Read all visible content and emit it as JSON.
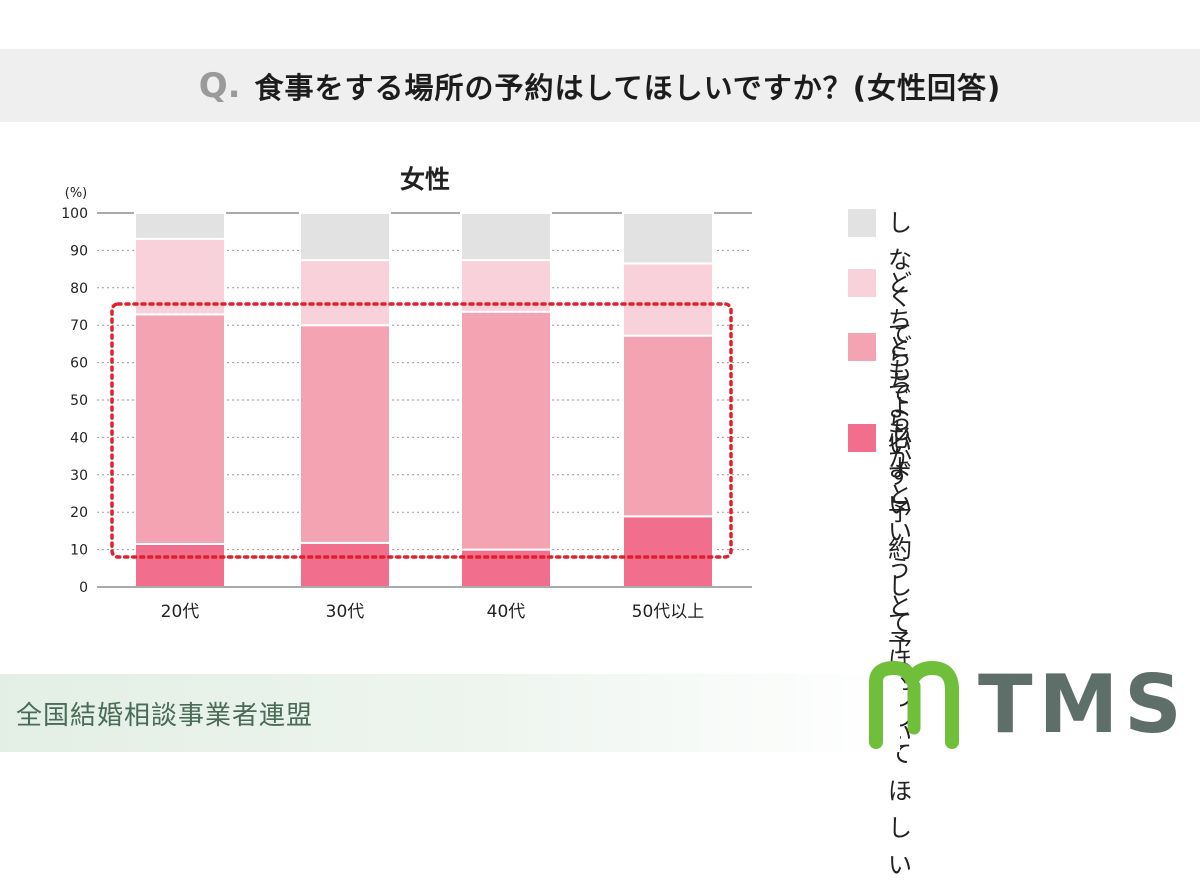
{
  "header": {
    "q_mark": "Q.",
    "question": "食事をする場所の予約はしてほしいですか？(女性回答)"
  },
  "colors": {
    "header_bg": "#efefef",
    "must": "#f26e8d",
    "rather_yes": "#f4a3b3",
    "either": "#f9d1db",
    "not_needed": "#e2e2e2",
    "highlight": "#e0202a",
    "brand_green": "#6fbf3a",
    "brand_gray": "#5e6e68"
  },
  "chart_data": {
    "type": "bar",
    "stacked": true,
    "title": "女性",
    "ylabel": "(%)",
    "ylim": [
      0,
      100
    ],
    "yticks": [
      "0",
      "10",
      "20",
      "30",
      "40",
      "50",
      "60",
      "70",
      "80",
      "90",
      "100"
    ],
    "grid": "dotted horizontal",
    "categories": [
      "20代",
      "30代",
      "40代",
      "50代以上"
    ],
    "series": [
      {
        "name": "必ず予約してほしい",
        "color": "#f26e8d",
        "values": [
          11.5,
          11.8,
          10.0,
          18.9
        ]
      },
      {
        "name": "どちらかというと\n予約してほしい",
        "color": "#f4a3b3",
        "values": [
          61.4,
          58.2,
          63.6,
          48.3
        ]
      },
      {
        "name": "どちらでもよい",
        "color": "#f9d1db",
        "values": [
          20.2,
          17.4,
          13.8,
          19.3
        ]
      },
      {
        "name": "しなくてもよい",
        "color": "#e2e2e2",
        "values": [
          6.9,
          12.6,
          12.6,
          13.5
        ]
      }
    ],
    "legend_position": "right",
    "highlight": "dotted red box around 10–75% range"
  },
  "legend_order": [
    3,
    2,
    1,
    0
  ],
  "footer": {
    "org": "全国結婚相談事業者連盟"
  },
  "logo": {
    "text": "TMS"
  }
}
